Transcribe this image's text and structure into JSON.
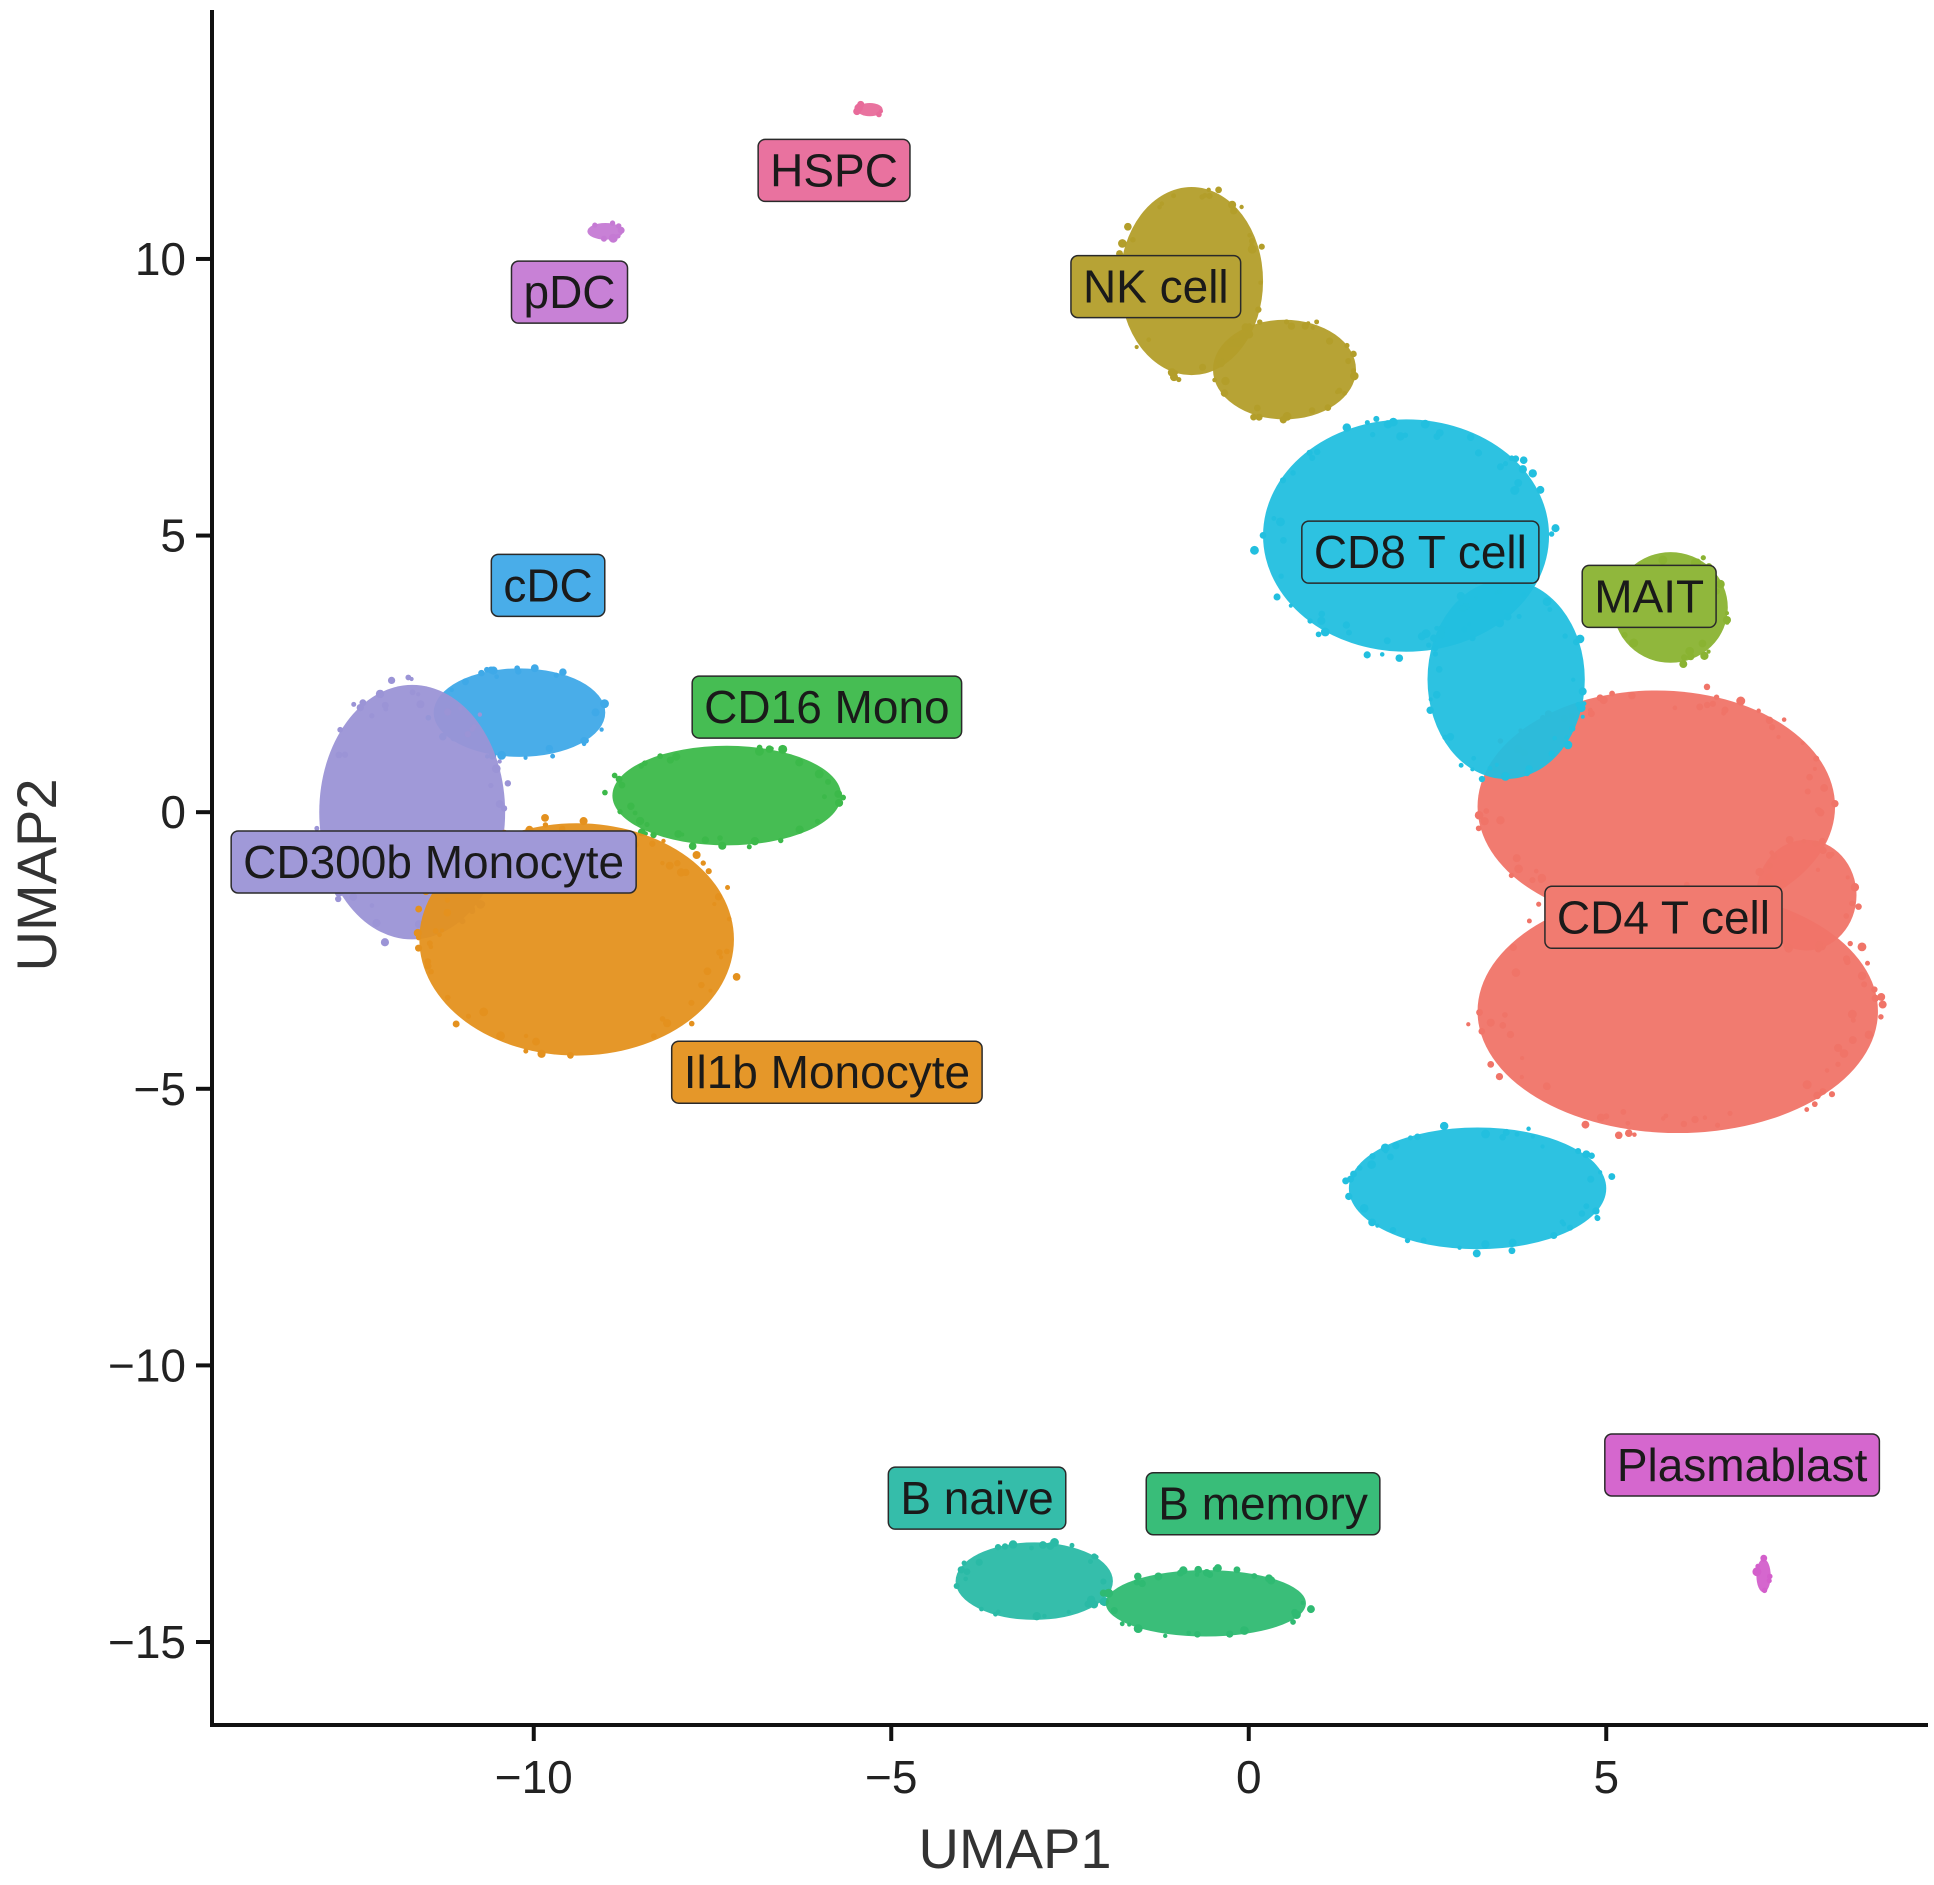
{
  "chart_data": {
    "type": "scatter",
    "title": "",
    "xlabel": "UMAP1",
    "ylabel": "UMAP2",
    "xlim": [
      -14.5,
      9.5
    ],
    "ylim": [
      -16.5,
      14.5
    ],
    "xticks": [
      -10,
      -5,
      0,
      5
    ],
    "yticks": [
      -15,
      -10,
      -5,
      0,
      5,
      10
    ],
    "xtick_labels": [
      "−10",
      "−5",
      "0",
      "5"
    ],
    "ytick_labels": [
      "−15",
      "−10",
      "−5",
      "0",
      "5",
      "10"
    ],
    "grid": false,
    "legend": "none",
    "clusters": [
      {
        "name": "CD4 T cell",
        "color": "#f07468",
        "label_at": [
          5.8,
          -1.9
        ],
        "regions": [
          {
            "center": [
              5.7,
              0.1
            ],
            "radius": [
              2.5,
              2.1
            ]
          },
          {
            "center": [
              6.0,
              -3.6
            ],
            "radius": [
              2.8,
              2.2
            ]
          },
          {
            "center": [
              7.8,
              -1.5
            ],
            "radius": [
              0.7,
              1.0
            ]
          }
        ]
      },
      {
        "name": "CD8 T cell",
        "color": "#22bfdf",
        "label_at": [
          2.4,
          4.7
        ],
        "regions": [
          {
            "center": [
              2.2,
              5.0
            ],
            "radius": [
              2.0,
              2.1
            ]
          },
          {
            "center": [
              3.6,
              2.4
            ],
            "radius": [
              1.1,
              1.8
            ]
          },
          {
            "center": [
              3.2,
              -6.8
            ],
            "radius": [
              1.8,
              1.1
            ]
          }
        ]
      },
      {
        "name": "NK cell",
        "color": "#b39e2a",
        "label_at": [
          -1.3,
          9.5
        ],
        "regions": [
          {
            "center": [
              -0.8,
              9.6
            ],
            "radius": [
              1.0,
              1.7
            ]
          },
          {
            "center": [
              0.5,
              8.0
            ],
            "radius": [
              1.0,
              0.9
            ]
          }
        ]
      },
      {
        "name": "MAIT",
        "color": "#8ab332",
        "label_at": [
          5.6,
          3.9
        ],
        "regions": [
          {
            "center": [
              5.9,
              3.7
            ],
            "radius": [
              0.8,
              1.0
            ]
          }
        ]
      },
      {
        "name": "cDC",
        "color": "#3fa9e8",
        "label_at": [
          -9.8,
          4.1
        ],
        "regions": [
          {
            "center": [
              -10.2,
              1.8
            ],
            "radius": [
              1.2,
              0.8
            ]
          }
        ]
      },
      {
        "name": "CD16 Mono",
        "color": "#3cb94a",
        "label_at": [
          -5.9,
          1.9
        ],
        "regions": [
          {
            "center": [
              -7.3,
              0.3
            ],
            "radius": [
              1.6,
              0.9
            ]
          }
        ]
      },
      {
        "name": "CD300b Monocyte",
        "color": "#9b94d6",
        "label_at": [
          -11.4,
          -0.9
        ],
        "regions": [
          {
            "center": [
              -11.7,
              0.0
            ],
            "radius": [
              1.3,
              2.3
            ]
          }
        ]
      },
      {
        "name": "Il1b Monocyte",
        "color": "#e4911e",
        "label_at": [
          -5.9,
          -4.7
        ],
        "regions": [
          {
            "center": [
              -9.4,
              -2.3
            ],
            "radius": [
              2.2,
              2.1
            ]
          }
        ]
      },
      {
        "name": "pDC",
        "color": "#c57ad4",
        "label_at": [
          -9.5,
          9.4
        ],
        "regions": [
          {
            "center": [
              -9.0,
              10.5
            ],
            "radius": [
              0.25,
              0.15
            ]
          }
        ]
      },
      {
        "name": "HSPC",
        "color": "#e86b9a",
        "label_at": [
          -5.8,
          11.6
        ],
        "regions": [
          {
            "center": [
              -5.3,
              12.7
            ],
            "radius": [
              0.18,
              0.12
            ]
          }
        ]
      },
      {
        "name": "B naive",
        "color": "#2abaa6",
        "label_at": [
          -3.8,
          -12.4
        ],
        "regions": [
          {
            "center": [
              -3.0,
              -13.9
            ],
            "radius": [
              1.1,
              0.7
            ]
          }
        ]
      },
      {
        "name": "B memory",
        "color": "#2fba72",
        "label_at": [
          0.2,
          -12.5
        ],
        "regions": [
          {
            "center": [
              -0.6,
              -14.3
            ],
            "radius": [
              1.4,
              0.6
            ]
          }
        ]
      },
      {
        "name": "Plasmablast",
        "color": "#d35fcb",
        "label_at": [
          6.9,
          -11.8
        ],
        "regions": [
          {
            "center": [
              7.2,
              -13.8
            ],
            "radius": [
              0.1,
              0.3
            ]
          }
        ]
      }
    ]
  }
}
